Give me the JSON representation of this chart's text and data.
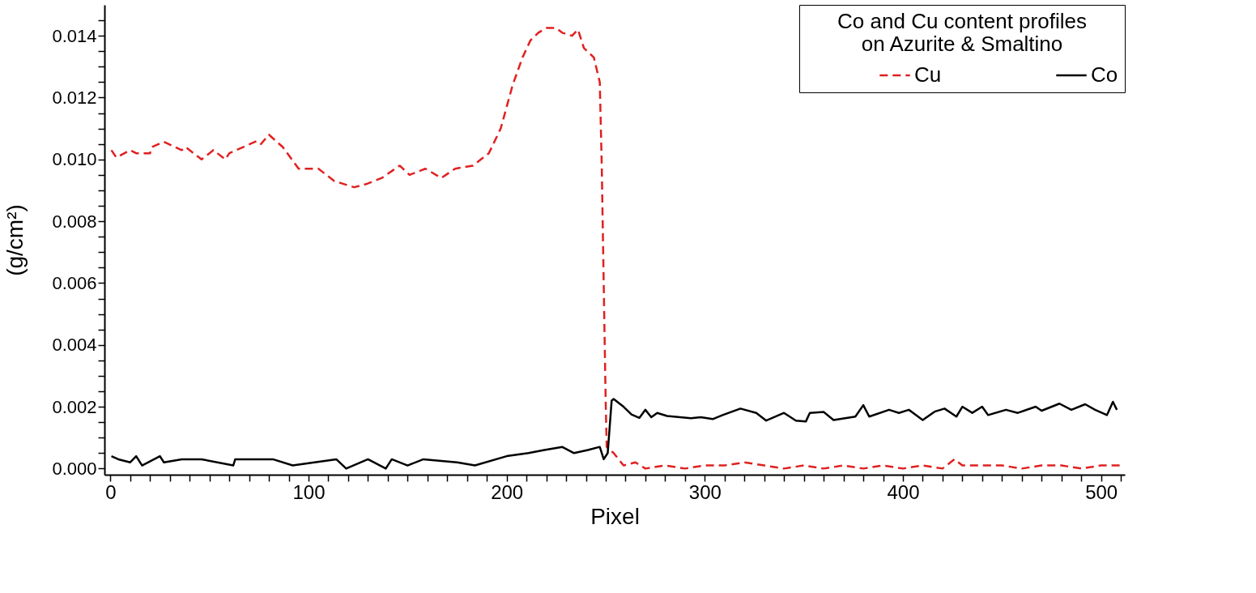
{
  "chart_data": {
    "type": "line",
    "xlabel": "Pixel",
    "ylabel": "(g/cm²)",
    "legend_title": "Co and Cu content profiles on Azurite & Smaltino",
    "legend": "top right",
    "grid": false,
    "xlim": [
      -3,
      512
    ],
    "ylim": [
      -0.0002,
      0.015
    ],
    "xticks": [
      0,
      {
        "value": 10,
        "label": null
      },
      {
        "value": 20,
        "label": null
      },
      {
        "value": 30,
        "label": null
      },
      {
        "value": 40,
        "label": null
      },
      {
        "value": 50,
        "label": null
      },
      {
        "value": 60,
        "label": null
      },
      {
        "value": 70,
        "label": null
      },
      {
        "value": 80,
        "label": null
      },
      {
        "value": 90,
        "label": null
      },
      100,
      {
        "value": 110,
        "label": null
      },
      {
        "value": 120,
        "label": null
      },
      {
        "value": 130,
        "label": null
      },
      {
        "value": 140,
        "label": null
      },
      {
        "value": 150,
        "label": null
      },
      {
        "value": 160,
        "label": null
      },
      {
        "value": 170,
        "label": null
      },
      {
        "value": 180,
        "label": null
      },
      {
        "value": 190,
        "label": null
      },
      200,
      {
        "value": 210,
        "label": null
      },
      {
        "value": 220,
        "label": null
      },
      {
        "value": 230,
        "label": null
      },
      {
        "value": 240,
        "label": null
      },
      {
        "value": 250,
        "label": null
      },
      {
        "value": 260,
        "label": null
      },
      {
        "value": 270,
        "label": null
      },
      {
        "value": 280,
        "label": null
      },
      {
        "value": 290,
        "label": null
      },
      300,
      {
        "value": 310,
        "label": null
      },
      {
        "value": 320,
        "label": null
      },
      {
        "value": 330,
        "label": null
      },
      {
        "value": 340,
        "label": null
      },
      {
        "value": 350,
        "label": null
      },
      {
        "value": 360,
        "label": null
      },
      {
        "value": 370,
        "label": null
      },
      {
        "value": 380,
        "label": null
      },
      {
        "value": 390,
        "label": null
      },
      400,
      {
        "value": 410,
        "label": null
      },
      {
        "value": 420,
        "label": null
      },
      {
        "value": 430,
        "label": null
      },
      {
        "value": 440,
        "label": null
      },
      {
        "value": 450,
        "label": null
      },
      {
        "value": 460,
        "label": null
      },
      {
        "value": 470,
        "label": null
      },
      {
        "value": 480,
        "label": null
      },
      {
        "value": 490,
        "label": null
      },
      500,
      {
        "value": 510,
        "label": null
      }
    ],
    "yticks": [
      {
        "value": 0,
        "label": "0.000"
      },
      {
        "value": 0.0005,
        "label": null
      },
      {
        "value": 0.001,
        "label": null
      },
      {
        "value": 0.0015,
        "label": null
      },
      0.002,
      {
        "value": 0.0025,
        "label": null
      },
      {
        "value": 0.003,
        "label": null
      },
      {
        "value": 0.0035,
        "label": null
      },
      0.004,
      {
        "value": 0.0045,
        "label": null
      },
      {
        "value": 0.005,
        "label": null
      },
      {
        "value": 0.0055,
        "label": null
      },
      0.006,
      {
        "value": 0.0065,
        "label": null
      },
      {
        "value": 0.007,
        "label": null
      },
      {
        "value": 0.0075,
        "label": null
      },
      0.008,
      {
        "value": 0.0085,
        "label": null
      },
      {
        "value": 0.009,
        "label": null
      },
      {
        "value": 0.0095,
        "label": null
      },
      {
        "value": 0.01,
        "label": "0.010"
      },
      {
        "value": 0.0105,
        "label": null
      },
      {
        "value": 0.011,
        "label": null
      },
      {
        "value": 0.0115,
        "label": null
      },
      0.012,
      {
        "value": 0.0125,
        "label": null
      },
      {
        "value": 0.013,
        "label": null
      },
      {
        "value": 0.0135,
        "label": null
      },
      0.014,
      {
        "value": 0.0145,
        "label": null
      }
    ],
    "series": [
      {
        "name": "Cu",
        "color": "#e02020",
        "line_style": "dashed",
        "x": [
          0.5,
          3,
          10,
          13,
          20,
          21,
          27,
          36,
          38,
          46,
          52,
          58,
          60,
          67,
          74,
          76,
          80,
          87,
          95,
          105,
          113,
          123,
          129,
          137,
          146,
          151,
          159,
          167,
          174,
          183,
          191,
          197,
          203,
          208,
          212,
          216,
          220,
          225,
          228,
          233,
          236,
          239,
          244,
          247,
          248,
          249,
          250,
          250.5,
          254,
          259,
          265,
          270,
          280,
          290,
          300,
          310,
          320,
          330,
          340,
          350,
          360,
          370,
          380,
          390,
          400,
          410,
          420,
          426,
          430,
          440,
          450,
          460,
          470,
          480,
          490,
          500,
          505,
          510
        ],
        "values": [
          0.0103,
          0.01006,
          0.0103,
          0.0102,
          0.0102,
          0.0104,
          0.01057,
          0.0103,
          0.0104,
          0.01,
          0.0103,
          0.01,
          0.0102,
          0.0104,
          0.0106,
          0.0105,
          0.0108,
          0.0104,
          0.0097,
          0.0097,
          0.0093,
          0.0091,
          0.0092,
          0.0094,
          0.0098,
          0.0095,
          0.0097,
          0.0094,
          0.0097,
          0.0098,
          0.0102,
          0.011,
          0.0124,
          0.0133,
          0.01385,
          0.0141,
          0.01425,
          0.01425,
          0.0141,
          0.014,
          0.0142,
          0.0136,
          0.0133,
          0.0125,
          0.0098,
          0.0059,
          0.0021,
          0.0007,
          0.0005,
          0.0001,
          0.0002,
          0.0,
          0.0001,
          0.0,
          0.0001,
          0.0001,
          0.0002,
          0.0001,
          0.0,
          0.0001,
          0.0,
          0.0001,
          0.0,
          0.0001,
          0.0,
          0.0001,
          0.0,
          0.0003,
          0.0001,
          0.0001,
          0.0001,
          0.0,
          0.0001,
          0.0001,
          0.0,
          0.0001,
          0.0001,
          0.0001
        ]
      },
      {
        "name": "Co",
        "color": "#000000",
        "line_style": "solid",
        "x": [
          0.5,
          4,
          10,
          13,
          16,
          25,
          27,
          36,
          46,
          62,
          63,
          82,
          92,
          114,
          119,
          130,
          139,
          142,
          150,
          158,
          175,
          184,
          200,
          211,
          219,
          228,
          234,
          241,
          247,
          249,
          251,
          253,
          254,
          259,
          263,
          267,
          270,
          273,
          276,
          281,
          293,
          298,
          304,
          309,
          318,
          326,
          331,
          340,
          346,
          351,
          353,
          360,
          365,
          376,
          380,
          383,
          393,
          398,
          403,
          410,
          416,
          421,
          427,
          430,
          435,
          440,
          443,
          452,
          458,
          467,
          470,
          479,
          485,
          492,
          497,
          503,
          506,
          508
        ],
        "values": [
          0.0004,
          0.0003,
          0.0002,
          0.0004,
          0.0001,
          0.0004,
          0.0002,
          0.0003,
          0.0003,
          0.0001,
          0.0003,
          0.0003,
          0.0001,
          0.0003,
          0.0,
          0.0003,
          0.0,
          0.0003,
          0.0001,
          0.0003,
          0.0002,
          0.0001,
          0.0004,
          0.0005,
          0.0006,
          0.0007,
          0.0005,
          0.0006,
          0.0007,
          0.0003,
          0.0005,
          0.0022,
          0.00225,
          0.002,
          0.00175,
          0.00164,
          0.0019,
          0.00166,
          0.0018,
          0.0017,
          0.00163,
          0.00166,
          0.0016,
          0.00173,
          0.00194,
          0.0018,
          0.00155,
          0.0018,
          0.00155,
          0.00152,
          0.0018,
          0.00183,
          0.00157,
          0.00168,
          0.00205,
          0.00168,
          0.0019,
          0.0018,
          0.0019,
          0.00157,
          0.00184,
          0.00194,
          0.00168,
          0.002,
          0.0018,
          0.002,
          0.00173,
          0.0019,
          0.0018,
          0.002,
          0.00187,
          0.0021,
          0.0019,
          0.00208,
          0.0019,
          0.00173,
          0.00216,
          0.0019
        ]
      }
    ]
  }
}
